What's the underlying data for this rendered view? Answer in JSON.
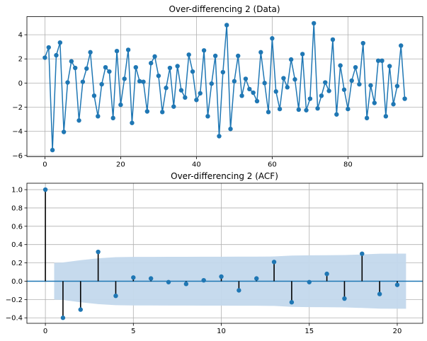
{
  "chart_data": [
    {
      "type": "line",
      "title": "Over-differencing 2 (Data)",
      "xlabel": "",
      "ylabel": "",
      "xlim": [
        -4.75,
        99.75
      ],
      "ylim": [
        -6.1,
        5.5
      ],
      "xticks": [
        0,
        20,
        40,
        60,
        80
      ],
      "yticks": [
        -6,
        -4,
        -2,
        0,
        2,
        4
      ],
      "grid": true,
      "color": "#1f77b4",
      "marker": "circle",
      "x": [
        0,
        1,
        2,
        3,
        4,
        5,
        6,
        7,
        8,
        9,
        10,
        11,
        12,
        13,
        14,
        15,
        16,
        17,
        18,
        19,
        20,
        21,
        22,
        23,
        24,
        25,
        26,
        27,
        28,
        29,
        30,
        31,
        32,
        33,
        34,
        35,
        36,
        37,
        38,
        39,
        40,
        41,
        42,
        43,
        44,
        45,
        46,
        47,
        48,
        49,
        50,
        51,
        52,
        53,
        54,
        55,
        56,
        57,
        58,
        59,
        60,
        61,
        62,
        63,
        64,
        65,
        66,
        67,
        68,
        69,
        70,
        71,
        72,
        73,
        74,
        75,
        76,
        77,
        78,
        79,
        80,
        81,
        82,
        83,
        84,
        85,
        86,
        87,
        88,
        89,
        90,
        91,
        92,
        93,
        94,
        95
      ],
      "values": [
        2.1,
        2.95,
        -5.55,
        2.3,
        3.35,
        -4.05,
        0.05,
        1.8,
        1.25,
        -3.1,
        0.1,
        1.2,
        2.55,
        -1.05,
        -2.75,
        -0.1,
        1.3,
        0.95,
        -2.9,
        2.65,
        -1.8,
        0.35,
        2.75,
        -3.3,
        1.3,
        0.15,
        0.1,
        -2.35,
        1.65,
        2.2,
        0.6,
        -2.4,
        -0.4,
        1.25,
        -1.95,
        1.4,
        -0.6,
        -1.2,
        2.35,
        0.95,
        -1.4,
        -0.85,
        2.7,
        -2.75,
        -0.05,
        2.25,
        -4.4,
        0.9,
        4.8,
        -3.8,
        0.15,
        2.25,
        -1.05,
        0.35,
        -0.5,
        -0.8,
        -1.5,
        2.55,
        0.0,
        -2.4,
        3.7,
        -0.7,
        -2.15,
        0.4,
        -0.35,
        1.95,
        0.3,
        -2.2,
        2.4,
        -2.25,
        -1.3,
        4.95,
        -2.1,
        -1.05,
        0.05,
        -0.65,
        3.6,
        -2.6,
        1.45,
        -0.55,
        -2.15,
        0.2,
        1.3,
        -0.1,
        3.3,
        -2.9,
        -0.2,
        -1.65,
        1.85,
        1.85,
        -2.75,
        1.4,
        -1.75,
        -0.25,
        3.1,
        -1.3
      ]
    },
    {
      "type": "stem",
      "title": "Over-differencing 2 (ACF)",
      "xlabel": "",
      "ylabel": "",
      "xlim": [
        -1.05,
        21.45
      ],
      "ylim": [
        -0.46,
        1.07
      ],
      "xticks": [
        0,
        5,
        10,
        15,
        20
      ],
      "yticks": [
        -0.4,
        -0.2,
        0.0,
        0.2,
        0.4,
        0.6,
        0.8,
        1.0
      ],
      "grid": true,
      "color": "#1f77b4",
      "band_color": "#c3d8ec",
      "x": [
        0,
        1,
        2,
        3,
        4,
        5,
        6,
        7,
        8,
        9,
        10,
        11,
        12,
        13,
        14,
        15,
        16,
        17,
        18,
        19,
        20
      ],
      "values": [
        1.0,
        -0.4,
        -0.31,
        0.32,
        -0.16,
        0.04,
        0.03,
        -0.01,
        -0.03,
        0.01,
        0.05,
        -0.1,
        0.03,
        0.21,
        -0.23,
        -0.01,
        0.08,
        -0.19,
        0.3,
        -0.14,
        -0.04
      ],
      "confidence_x": [
        0.5,
        1,
        2,
        3,
        4,
        5,
        6,
        7,
        8,
        9,
        10,
        11,
        12,
        13,
        14,
        15,
        16,
        17,
        18,
        19,
        20,
        20.5
      ],
      "confidence_upper": [
        0.2,
        0.205,
        0.23,
        0.25,
        0.262,
        0.265,
        0.265,
        0.266,
        0.266,
        0.267,
        0.267,
        0.268,
        0.268,
        0.27,
        0.28,
        0.283,
        0.284,
        0.286,
        0.292,
        0.3,
        0.301,
        0.301
      ]
    }
  ]
}
